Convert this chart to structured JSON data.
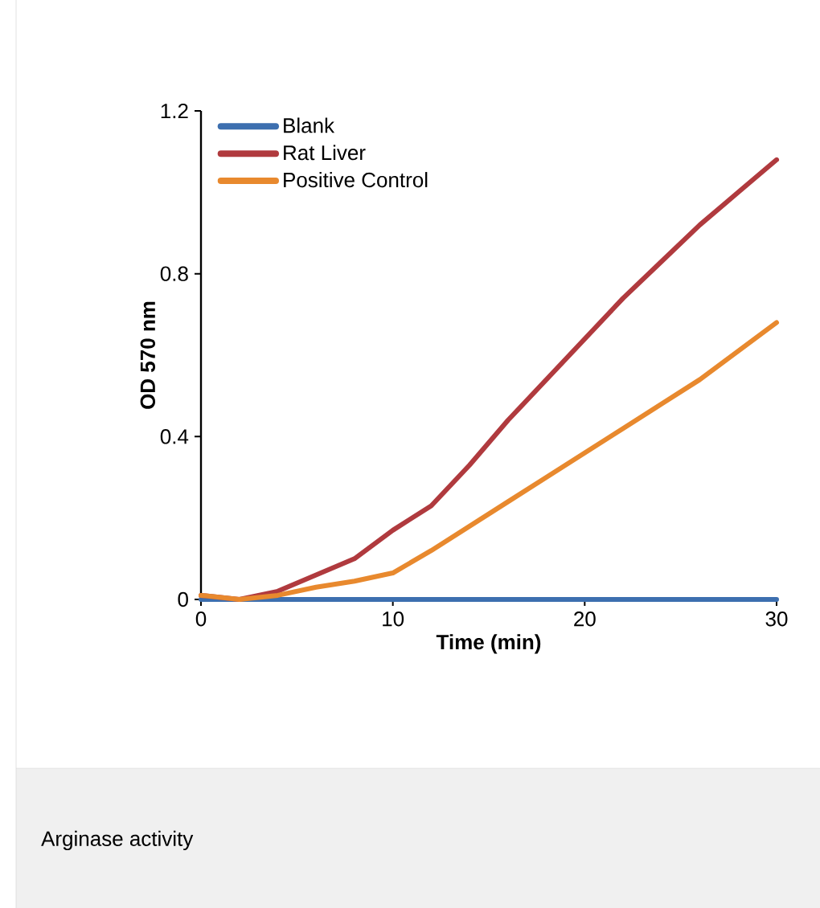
{
  "chart_data": {
    "type": "line",
    "xlabel": "Time (min)",
    "ylabel": "OD 570 nm",
    "xlim": [
      0,
      30
    ],
    "ylim": [
      0,
      1.2
    ],
    "xticks": [
      0,
      10,
      20,
      30
    ],
    "yticks": [
      0,
      0.4,
      0.8,
      1.2
    ],
    "legend": "top left",
    "grid": false,
    "marker": "none",
    "line_style": "solid",
    "series": [
      {
        "name": "Blank",
        "color": "#3d6faf",
        "x": [
          0,
          30
        ],
        "values": [
          0,
          0
        ]
      },
      {
        "name": "Rat Liver",
        "color": "#b03a3e",
        "x": [
          0,
          2,
          4,
          6,
          8,
          10,
          12,
          14,
          16,
          18,
          20,
          22,
          24,
          26,
          28,
          30
        ],
        "values": [
          0.01,
          0,
          0.02,
          0.06,
          0.1,
          0.17,
          0.23,
          0.33,
          0.44,
          0.54,
          0.64,
          0.74,
          0.83,
          0.92,
          1.0,
          1.08
        ]
      },
      {
        "name": "Positive Control",
        "color": "#e8892e",
        "x": [
          0,
          2,
          4,
          6,
          8,
          10,
          12,
          14,
          16,
          18,
          20,
          22,
          24,
          26,
          28,
          30
        ],
        "values": [
          0.01,
          0,
          0.01,
          0.03,
          0.045,
          0.065,
          0.12,
          0.18,
          0.24,
          0.3,
          0.36,
          0.42,
          0.48,
          0.54,
          0.61,
          0.68
        ]
      }
    ],
    "annotations": [
      "Arginase activity"
    ]
  }
}
